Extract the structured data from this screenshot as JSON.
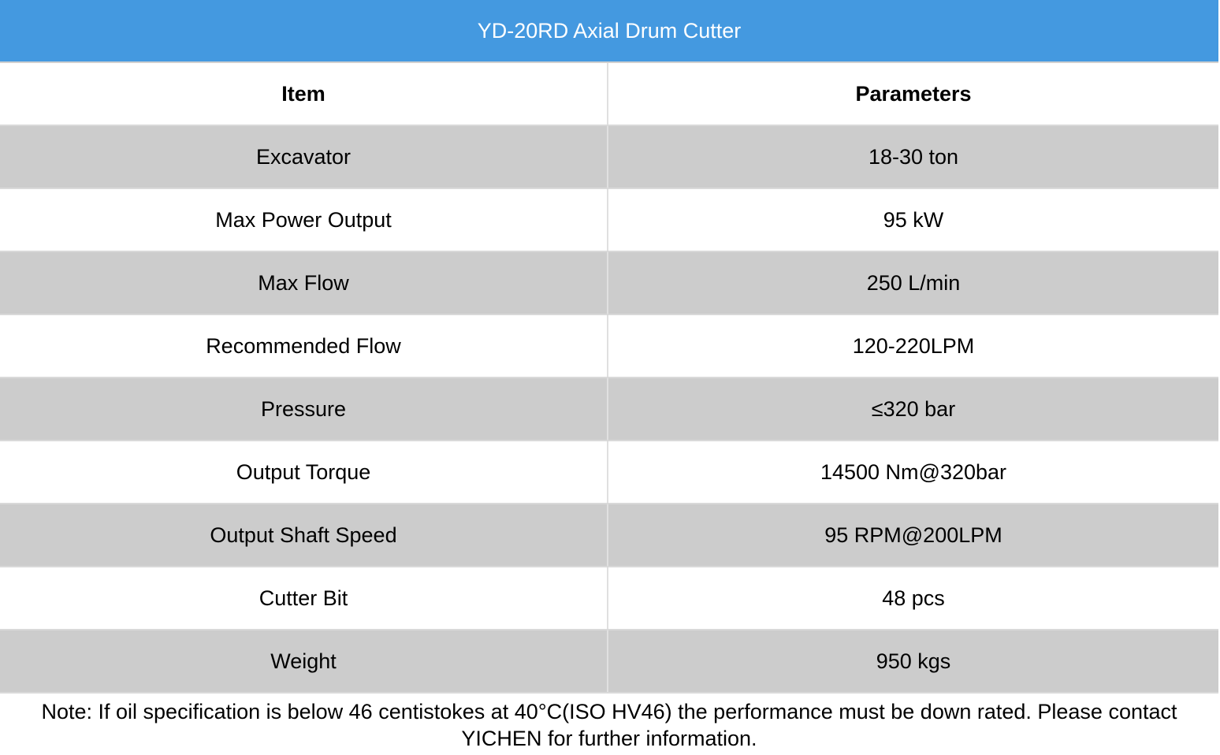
{
  "table": {
    "title": "YD-20RD Axial Drum Cutter",
    "header": [
      "Item",
      "Parameters"
    ],
    "rows": [
      [
        "Excavator",
        "18-30 ton"
      ],
      [
        "Max Power Output",
        "95 kW"
      ],
      [
        "Max Flow",
        "250 L/min"
      ],
      [
        "Recommended Flow",
        "120-220LPM"
      ],
      [
        "Pressure",
        "≤320 bar"
      ],
      [
        "Output Torque",
        "14500 Nm@320bar"
      ],
      [
        "Output Shaft Speed",
        "95 RPM@200LPM"
      ],
      [
        "Cutter Bit",
        "48 pcs"
      ],
      [
        "Weight",
        "950 kgs"
      ]
    ],
    "note": "Note: If oil specification is below 46 centistokes at 40°C(ISO HV46) the performance must be down rated. Please contact YICHEN for further information."
  }
}
